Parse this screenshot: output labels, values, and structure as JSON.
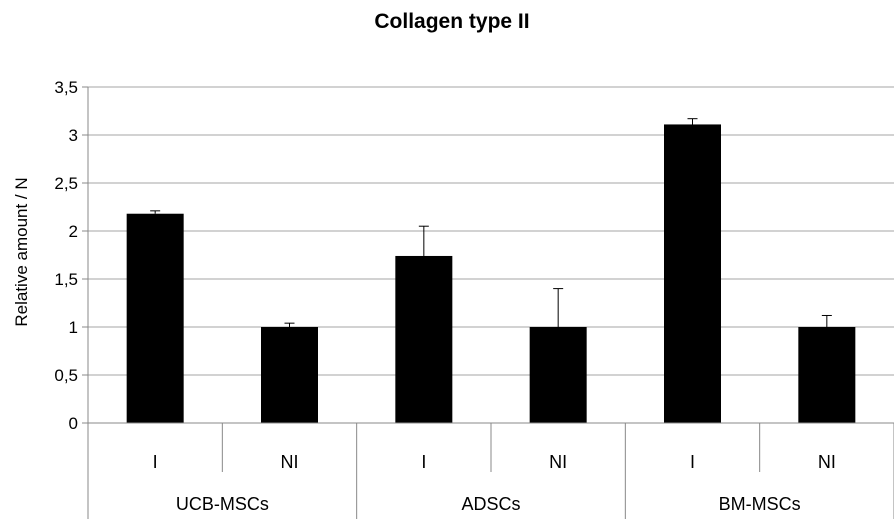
{
  "chart_data": {
    "type": "bar",
    "title": "Collagen type II",
    "ylabel": "Relative amount / N",
    "xlabel": "",
    "ylim": [
      0,
      3.5
    ],
    "yticks": [
      {
        "value": 0,
        "label": "0"
      },
      {
        "value": 0.5,
        "label": "0,5"
      },
      {
        "value": 1,
        "label": "1"
      },
      {
        "value": 1.5,
        "label": "1,5"
      },
      {
        "value": 2,
        "label": "2"
      },
      {
        "value": 2.5,
        "label": "2,5"
      },
      {
        "value": 3,
        "label": "3"
      },
      {
        "value": 3.5,
        "label": "3,5"
      }
    ],
    "grid": true,
    "bar_color": "#000000",
    "groups": [
      "UCB-MSCs",
      "ADSCs",
      "BM-MSCs"
    ],
    "categories": [
      "I",
      "NI",
      "I",
      "NI",
      "I",
      "NI"
    ],
    "values": [
      2.18,
      1.0,
      1.74,
      1.0,
      3.11,
      1.0
    ],
    "error_plus": [
      0.03,
      0.04,
      0.31,
      0.4,
      0.06,
      0.12
    ]
  }
}
